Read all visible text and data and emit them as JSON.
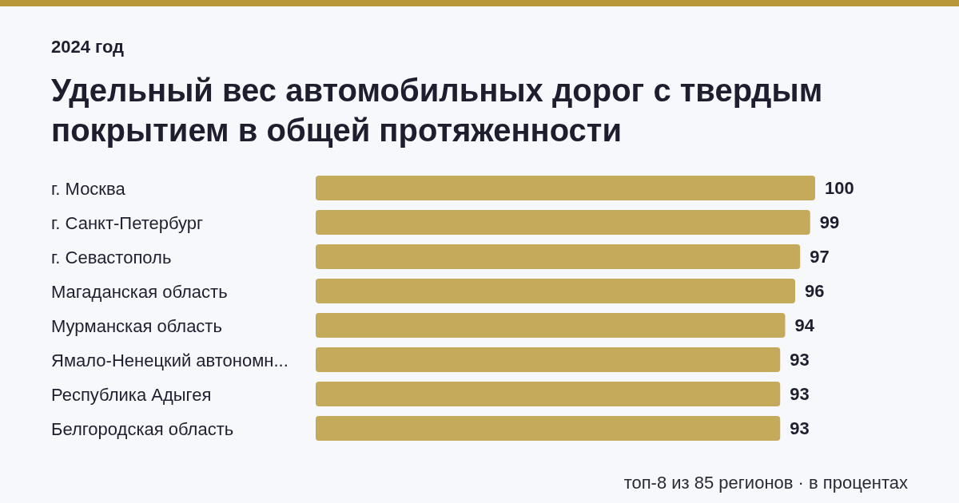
{
  "chart_data": {
    "type": "bar",
    "orientation": "horizontal",
    "subtitle": "2024 год",
    "title": "Удельный вес автомобильных дорог с твердым покрытием в общей протяженности",
    "categories": [
      "г. Москва",
      "г. Санкт-Петербург",
      "г. Севастополь",
      "Магаданская область",
      "Мурманская область",
      "Ямало-Ненецкий автономн...",
      "Республика Адыгея",
      "Белгородская область"
    ],
    "values": [
      100,
      99,
      97,
      96,
      94,
      93,
      93,
      93
    ],
    "color": "#c6aa5c",
    "data_labels": true,
    "annotations": [
      "топ-8 из 85 регионов · в процентах"
    ]
  }
}
